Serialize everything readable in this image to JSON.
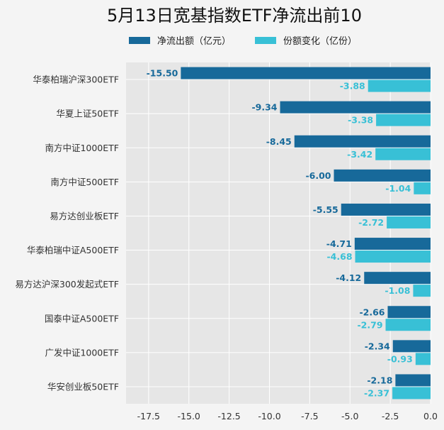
{
  "chart_data": {
    "type": "bar",
    "orientation": "horizontal",
    "title": "5月13日宽基指数ETF净流出前10",
    "legend_position": "top",
    "grid": true,
    "categories": [
      "华泰柏瑞沪深300ETF",
      "华夏上证50ETF",
      "南方中证1000ETF",
      "南方中证500ETF",
      "易方达创业板ETF",
      "华泰柏瑞中证A500ETF",
      "易方达沪深300发起式ETF",
      "国泰中证A500ETF",
      "广发中证1000ETF",
      "华安创业板50ETF"
    ],
    "series": [
      {
        "name": "净流出额（亿元）",
        "color": "#17699a",
        "values": [
          -15.5,
          -9.34,
          -8.45,
          -6.0,
          -5.55,
          -4.71,
          -4.12,
          -2.66,
          -2.34,
          -2.18
        ],
        "labels": [
          "-15.50",
          "-9.34",
          "-8.45",
          "-6.00",
          "-5.55",
          "-4.71",
          "-4.12",
          "-2.66",
          "-2.34",
          "-2.18"
        ]
      },
      {
        "name": "份额变化（亿份）",
        "color": "#38c0d6",
        "values": [
          -3.88,
          -3.38,
          -3.42,
          -1.04,
          -2.72,
          -4.68,
          -1.08,
          -2.79,
          -0.93,
          -2.37
        ],
        "labels": [
          "-3.88",
          "-3.38",
          "-3.42",
          "-1.04",
          "-2.72",
          "-4.68",
          "-1.08",
          "-2.79",
          "-0.93",
          "-2.37"
        ]
      }
    ],
    "xlim": [
      -18.9,
      0
    ],
    "xticks": [
      -17.5,
      -15.0,
      -12.5,
      -10.0,
      -7.5,
      -5.0,
      -2.5,
      0.0
    ],
    "xtick_labels": [
      "-17.5",
      "-15.0",
      "-12.5",
      "-10.0",
      "-7.5",
      "-5.0",
      "-2.5",
      "0.0"
    ]
  }
}
